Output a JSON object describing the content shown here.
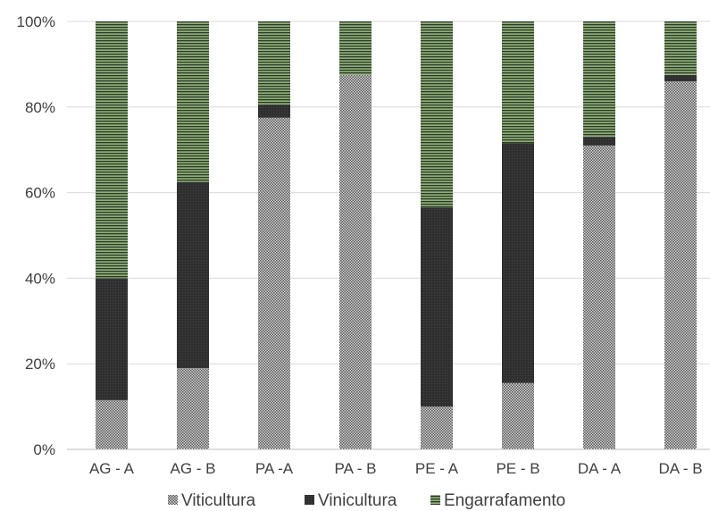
{
  "chart_data": {
    "type": "bar",
    "stacked": true,
    "percent": true,
    "categories": [
      "AG - A",
      "AG - B",
      "PA -A",
      "PA - B",
      "PE - A",
      "PE - B",
      "DA - A",
      "DA - B"
    ],
    "series": [
      {
        "name": "Viticultura",
        "values": [
          11.5,
          19,
          77.5,
          87.5,
          10,
          15.5,
          71,
          86
        ]
      },
      {
        "name": "Vinicultura",
        "values": [
          28.5,
          43.5,
          3,
          0,
          46.5,
          56,
          2,
          1.5
        ]
      },
      {
        "name": "Engarrafamento",
        "values": [
          60,
          37.5,
          19.5,
          12.5,
          43.5,
          28.5,
          27,
          12.5
        ]
      }
    ],
    "y_ticks": [
      "0%",
      "20%",
      "40%",
      "60%",
      "80%",
      "100%"
    ],
    "ylim": [
      0,
      100
    ],
    "grid": true,
    "legend_position": "bottom",
    "colors": {
      "Viticultura": "#8a8a8a",
      "Vinicultura": "#3a3a3a",
      "Engarrafamento": "#6f8a5c"
    }
  }
}
